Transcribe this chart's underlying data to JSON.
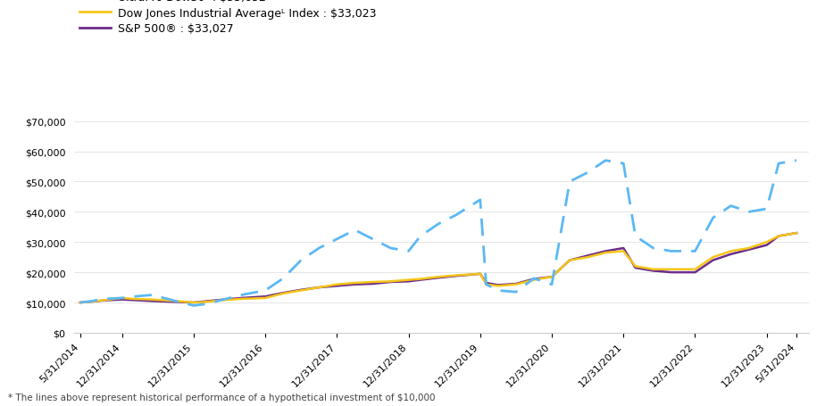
{
  "x_labels": [
    "5/31/2014",
    "12/31/2014",
    "12/31/2015",
    "12/31/2016",
    "12/31/2017",
    "12/31/2018",
    "12/31/2019",
    "12/31/2020",
    "12/31/2021",
    "12/31/2022",
    "12/31/2023",
    "5/31/2024"
  ],
  "tick_positions": [
    0,
    7,
    19,
    31,
    43,
    55,
    67,
    79,
    91,
    103,
    115,
    120
  ],
  "up_x": [
    0,
    2,
    4,
    7,
    9,
    12,
    16,
    19,
    21,
    24,
    27,
    31,
    34,
    37,
    40,
    43,
    46,
    49,
    52,
    55,
    57,
    60,
    63,
    67,
    68,
    70,
    73,
    76,
    79,
    82,
    85,
    88,
    91,
    93,
    96,
    99,
    103,
    106,
    109,
    112,
    115,
    117,
    120
  ],
  "up_y": [
    10000,
    10500,
    11200,
    11500,
    12000,
    12500,
    10500,
    9000,
    9500,
    11000,
    12500,
    14000,
    18000,
    24000,
    28000,
    31000,
    34000,
    31000,
    28000,
    27000,
    32000,
    36000,
    39000,
    44000,
    16000,
    14000,
    13500,
    18000,
    16000,
    50000,
    53000,
    57000,
    56000,
    32000,
    28000,
    27000,
    27000,
    38000,
    42000,
    40000,
    41000,
    56000,
    57000
  ],
  "dj_x": [
    0,
    2,
    4,
    7,
    9,
    12,
    16,
    19,
    21,
    24,
    27,
    31,
    34,
    37,
    40,
    43,
    46,
    49,
    52,
    55,
    57,
    60,
    63,
    67,
    68,
    70,
    73,
    76,
    79,
    82,
    85,
    88,
    91,
    93,
    96,
    99,
    103,
    106,
    109,
    112,
    115,
    117,
    120
  ],
  "dj_y": [
    10000,
    10300,
    10800,
    11500,
    11200,
    11000,
    10500,
    10000,
    10200,
    10800,
    11200,
    11500,
    13000,
    14000,
    15000,
    16000,
    16500,
    16800,
    17000,
    17500,
    17800,
    18500,
    19000,
    19500,
    16000,
    15500,
    16000,
    17500,
    18500,
    24000,
    25000,
    26500,
    27000,
    22000,
    21000,
    21000,
    21000,
    25000,
    27000,
    28000,
    30000,
    32000,
    33000
  ],
  "sp_x": [
    0,
    2,
    4,
    7,
    9,
    12,
    16,
    19,
    21,
    24,
    27,
    31,
    34,
    37,
    40,
    43,
    46,
    49,
    52,
    55,
    57,
    60,
    63,
    67,
    68,
    70,
    73,
    76,
    79,
    82,
    85,
    88,
    91,
    93,
    96,
    99,
    103,
    106,
    109,
    112,
    115,
    117,
    120
  ],
  "sp_y": [
    10000,
    10300,
    10700,
    11000,
    10800,
    10500,
    10200,
    10000,
    10400,
    11000,
    11500,
    12000,
    13200,
    14200,
    15000,
    15500,
    16000,
    16200,
    16800,
    17000,
    17500,
    18200,
    18800,
    19500,
    16500,
    15800,
    16200,
    17800,
    18500,
    24000,
    25500,
    27000,
    28000,
    21500,
    20500,
    20000,
    20000,
    24000,
    26000,
    27500,
    29000,
    32000,
    33000
  ],
  "ultrapro_color": "#5bb8f5",
  "dow_color": "#f5c518",
  "sp500_color": "#6b2d8b",
  "legend_dow": "Dow Jones Industrial Averageᴸ Index : $33,023",
  "legend_sp500": "S&P 500® : $33,027",
  "yticks": [
    0,
    10000,
    20000,
    30000,
    40000,
    50000,
    60000,
    70000
  ],
  "ylim": [
    0,
    74000
  ],
  "xlim": [
    -1,
    122
  ],
  "footnote": "* The lines above represent historical performance of a hypothetical investment of $10,000"
}
